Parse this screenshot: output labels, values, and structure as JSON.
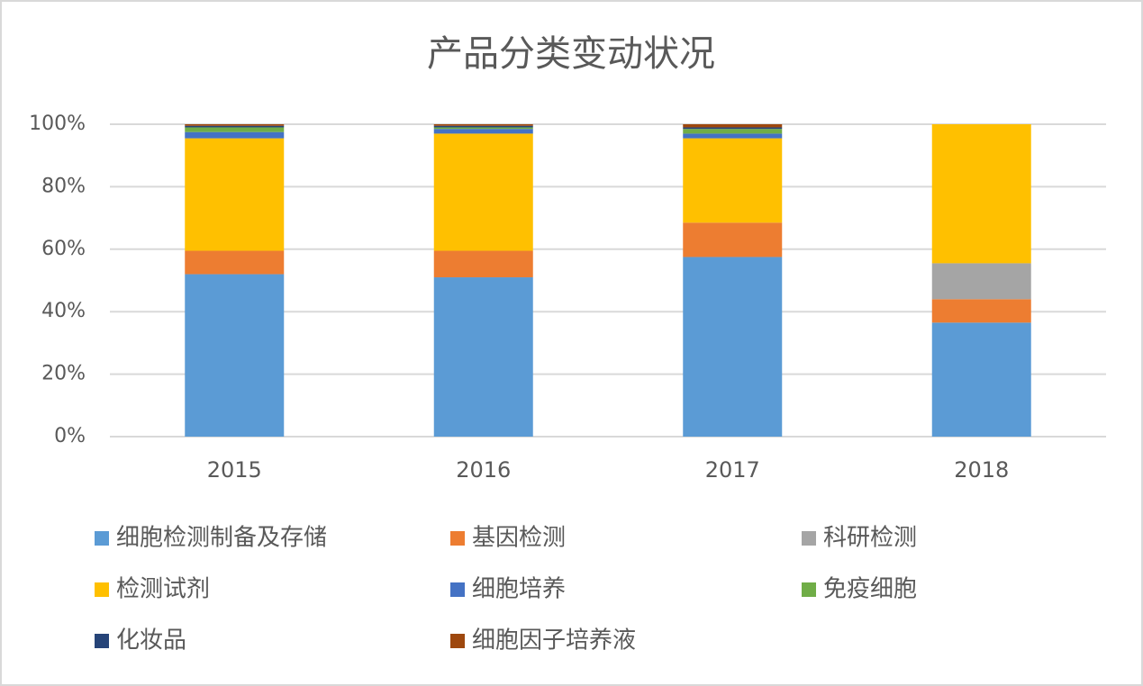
{
  "chart_data": {
    "type": "stacked_bar",
    "title": "产品分类变动状况",
    "categories": [
      "2015",
      "2016",
      "2017",
      "2018"
    ],
    "series": [
      {
        "name": "细胞检测制备及存储",
        "color": "#5b9bd5",
        "values": [
          52,
          51,
          57.5,
          36.5
        ]
      },
      {
        "name": "基因检测",
        "color": "#ed7d31",
        "values": [
          7.5,
          8.5,
          11,
          7.5
        ]
      },
      {
        "name": "科研检测",
        "color": "#a5a5a5",
        "values": [
          0,
          0,
          0,
          11.5
        ]
      },
      {
        "name": "检测试剂",
        "color": "#ffc000",
        "values": [
          36,
          37.5,
          27,
          44.5
        ]
      },
      {
        "name": "细胞培养",
        "color": "#4472c4",
        "values": [
          2,
          1.5,
          1.5,
          0
        ]
      },
      {
        "name": "免疫细胞",
        "color": "#70ad47",
        "values": [
          1.5,
          0.5,
          1.5,
          0
        ]
      },
      {
        "name": "化妆品",
        "color": "#264478",
        "values": [
          0.5,
          0.5,
          0.5,
          0
        ]
      },
      {
        "name": "细胞因子培养液",
        "color": "#9e480e",
        "values": [
          0.5,
          0.5,
          1,
          0
        ]
      }
    ],
    "ylim": [
      0,
      100
    ],
    "yticks": [
      {
        "value": 0,
        "label": "0%"
      },
      {
        "value": 20,
        "label": "20%"
      },
      {
        "value": 40,
        "label": "40%"
      },
      {
        "value": 60,
        "label": "60%"
      },
      {
        "value": 80,
        "label": "80%"
      },
      {
        "value": 100,
        "label": "100%"
      }
    ],
    "grid": true
  }
}
